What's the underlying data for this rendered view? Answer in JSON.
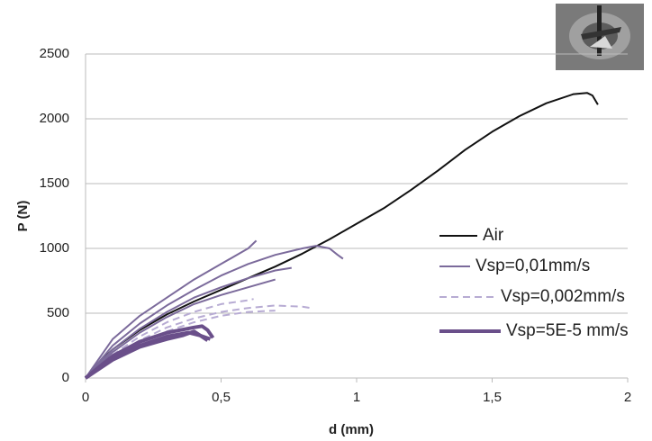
{
  "chart_data": {
    "type": "line",
    "x_label": "d (mm)",
    "y_label": "P (N)",
    "xlim": [
      0,
      2
    ],
    "ylim": [
      0,
      2500
    ],
    "xticks": [
      0,
      {
        "value": 0.5,
        "label": "0,5"
      },
      1,
      {
        "value": 1.5,
        "label": "1,5"
      },
      2
    ],
    "yticks": [
      0,
      500,
      1000,
      1500,
      2000,
      2500
    ],
    "grid": true,
    "series": [
      {
        "name": "Air",
        "color": "#111111",
        "width": 2,
        "dashed": false,
        "curves": [
          {
            "x": [
              0,
              0.05,
              0.1,
              0.2,
              0.3,
              0.4,
              0.5,
              0.6,
              0.7,
              0.8,
              0.9,
              1,
              1.1,
              1.2,
              1.3,
              1.4,
              1.5,
              1.6,
              1.7,
              1.8,
              1.85,
              1.87,
              1.89
            ],
            "values": [
              0,
              120,
              220,
              370,
              490,
              590,
              680,
              770,
              860,
              960,
              1070,
              1190,
              1310,
              1450,
              1600,
              1760,
              1900,
              2020,
              2120,
              2190,
              2200,
              2180,
              2110
            ]
          }
        ]
      },
      {
        "name": "Vsp=0,01mm/s",
        "color": "#7b6a9b",
        "width": 2,
        "dashed": false,
        "curves": [
          {
            "x": [
              0,
              0.1,
              0.2,
              0.3,
              0.4,
              0.5,
              0.6,
              0.63
            ],
            "values": [
              0,
              300,
              480,
              620,
              760,
              880,
              1000,
              1060
            ]
          },
          {
            "x": [
              0,
              0.1,
              0.2,
              0.3,
              0.4,
              0.5,
              0.6,
              0.7,
              0.8,
              0.85,
              0.9,
              0.93,
              0.95
            ],
            "values": [
              0,
              250,
              420,
              560,
              680,
              790,
              880,
              950,
              1000,
              1020,
              1000,
              950,
              920
            ]
          },
          {
            "x": [
              0,
              0.1,
              0.2,
              0.3,
              0.4,
              0.5,
              0.6,
              0.7,
              0.76
            ],
            "values": [
              0,
              220,
              380,
              510,
              620,
              700,
              770,
              830,
              850
            ]
          },
          {
            "x": [
              0,
              0.1,
              0.2,
              0.3,
              0.4,
              0.5,
              0.6,
              0.7
            ],
            "values": [
              0,
              200,
              350,
              470,
              570,
              640,
              700,
              760
            ]
          }
        ]
      },
      {
        "name": "Vsp=0,002mm/s",
        "color": "#b7abd3",
        "width": 2,
        "dashed": true,
        "curves": [
          {
            "x": [
              0,
              0.1,
              0.2,
              0.3,
              0.4,
              0.5,
              0.6,
              0.62
            ],
            "values": [
              0,
              180,
              320,
              430,
              510,
              570,
              600,
              610
            ]
          },
          {
            "x": [
              0,
              0.1,
              0.2,
              0.3,
              0.4,
              0.5,
              0.6,
              0.7,
              0.8,
              0.83
            ],
            "values": [
              0,
              160,
              290,
              390,
              460,
              510,
              540,
              560,
              550,
              540
            ]
          },
          {
            "x": [
              0,
              0.1,
              0.2,
              0.3,
              0.4,
              0.5,
              0.6,
              0.7
            ],
            "values": [
              0,
              150,
              270,
              360,
              430,
              480,
              510,
              520
            ]
          }
        ]
      },
      {
        "name": "Vsp=5E-5 mm/s",
        "color": "#6a4f8a",
        "width": 4,
        "dashed": false,
        "curves": [
          {
            "x": [
              0,
              0.1,
              0.2,
              0.3,
              0.4,
              0.43,
              0.45,
              0.47
            ],
            "values": [
              0,
              170,
              280,
              350,
              390,
              400,
              370,
              310
            ]
          },
          {
            "x": [
              0,
              0.1,
              0.2,
              0.3,
              0.38,
              0.42,
              0.46
            ],
            "values": [
              0,
              150,
              250,
              320,
              350,
              330,
              300
            ]
          },
          {
            "x": [
              0,
              0.1,
              0.2,
              0.3,
              0.36,
              0.4,
              0.45
            ],
            "values": [
              0,
              140,
              240,
              300,
              330,
              360,
              290
            ]
          }
        ]
      }
    ]
  }
}
